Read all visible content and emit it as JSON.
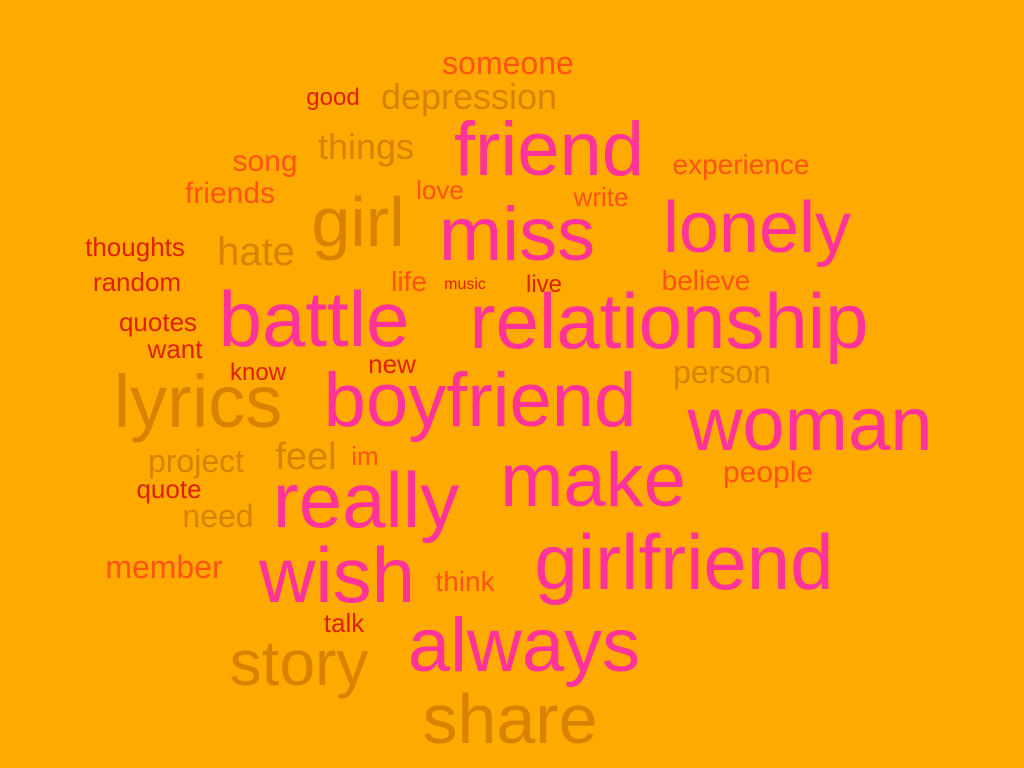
{
  "palette": {
    "background": "#FFAA00",
    "pink": "#FF3399",
    "brown": "#D98200",
    "orange": "#FF5511",
    "red": "#DD2200"
  },
  "words": [
    {
      "id": "someone",
      "text": "someone",
      "color": "orange"
    },
    {
      "id": "good",
      "text": "good",
      "color": "red"
    },
    {
      "id": "depression",
      "text": "depression",
      "color": "brown"
    },
    {
      "id": "friend",
      "text": "friend",
      "color": "pink"
    },
    {
      "id": "things",
      "text": "things",
      "color": "brown"
    },
    {
      "id": "song",
      "text": "song",
      "color": "orange"
    },
    {
      "id": "experience",
      "text": "experience",
      "color": "orange"
    },
    {
      "id": "friends",
      "text": "friends",
      "color": "orange"
    },
    {
      "id": "love",
      "text": "love",
      "color": "orange"
    },
    {
      "id": "write",
      "text": "write",
      "color": "orange"
    },
    {
      "id": "girl",
      "text": "girl",
      "color": "brown"
    },
    {
      "id": "miss",
      "text": "miss",
      "color": "pink"
    },
    {
      "id": "lonely",
      "text": "lonely",
      "color": "pink"
    },
    {
      "id": "thoughts",
      "text": "thoughts",
      "color": "red"
    },
    {
      "id": "hate",
      "text": "hate",
      "color": "brown"
    },
    {
      "id": "random",
      "text": "random",
      "color": "red"
    },
    {
      "id": "life",
      "text": "life",
      "color": "orange"
    },
    {
      "id": "music",
      "text": "music",
      "color": "red"
    },
    {
      "id": "live",
      "text": "live",
      "color": "red"
    },
    {
      "id": "believe",
      "text": "believe",
      "color": "orange"
    },
    {
      "id": "battle",
      "text": "battle",
      "color": "pink"
    },
    {
      "id": "relationship",
      "text": "relationship",
      "color": "pink"
    },
    {
      "id": "quotes",
      "text": "quotes",
      "color": "red"
    },
    {
      "id": "want",
      "text": "want",
      "color": "red"
    },
    {
      "id": "new",
      "text": "new",
      "color": "red"
    },
    {
      "id": "know",
      "text": "know",
      "color": "red"
    },
    {
      "id": "person",
      "text": "person",
      "color": "brown"
    },
    {
      "id": "lyrics",
      "text": "lyrics",
      "color": "brown"
    },
    {
      "id": "boyfriend",
      "text": "boyfriend",
      "color": "pink"
    },
    {
      "id": "woman",
      "text": "woman",
      "color": "pink"
    },
    {
      "id": "feel",
      "text": "feel",
      "color": "brown"
    },
    {
      "id": "im",
      "text": "im",
      "color": "orange"
    },
    {
      "id": "project",
      "text": "project",
      "color": "brown"
    },
    {
      "id": "make",
      "text": "make",
      "color": "pink"
    },
    {
      "id": "people",
      "text": "people",
      "color": "orange"
    },
    {
      "id": "quote",
      "text": "quote",
      "color": "red"
    },
    {
      "id": "really",
      "text": "really",
      "color": "pink"
    },
    {
      "id": "need",
      "text": "need",
      "color": "brown"
    },
    {
      "id": "girlfriend",
      "text": "girlfriend",
      "color": "pink"
    },
    {
      "id": "member",
      "text": "member",
      "color": "orange"
    },
    {
      "id": "wish",
      "text": "wish",
      "color": "pink"
    },
    {
      "id": "think",
      "text": "think",
      "color": "orange"
    },
    {
      "id": "talk",
      "text": "talk",
      "color": "red"
    },
    {
      "id": "always",
      "text": "always",
      "color": "pink"
    },
    {
      "id": "story",
      "text": "story",
      "color": "brown"
    },
    {
      "id": "share",
      "text": "share",
      "color": "brown"
    }
  ]
}
